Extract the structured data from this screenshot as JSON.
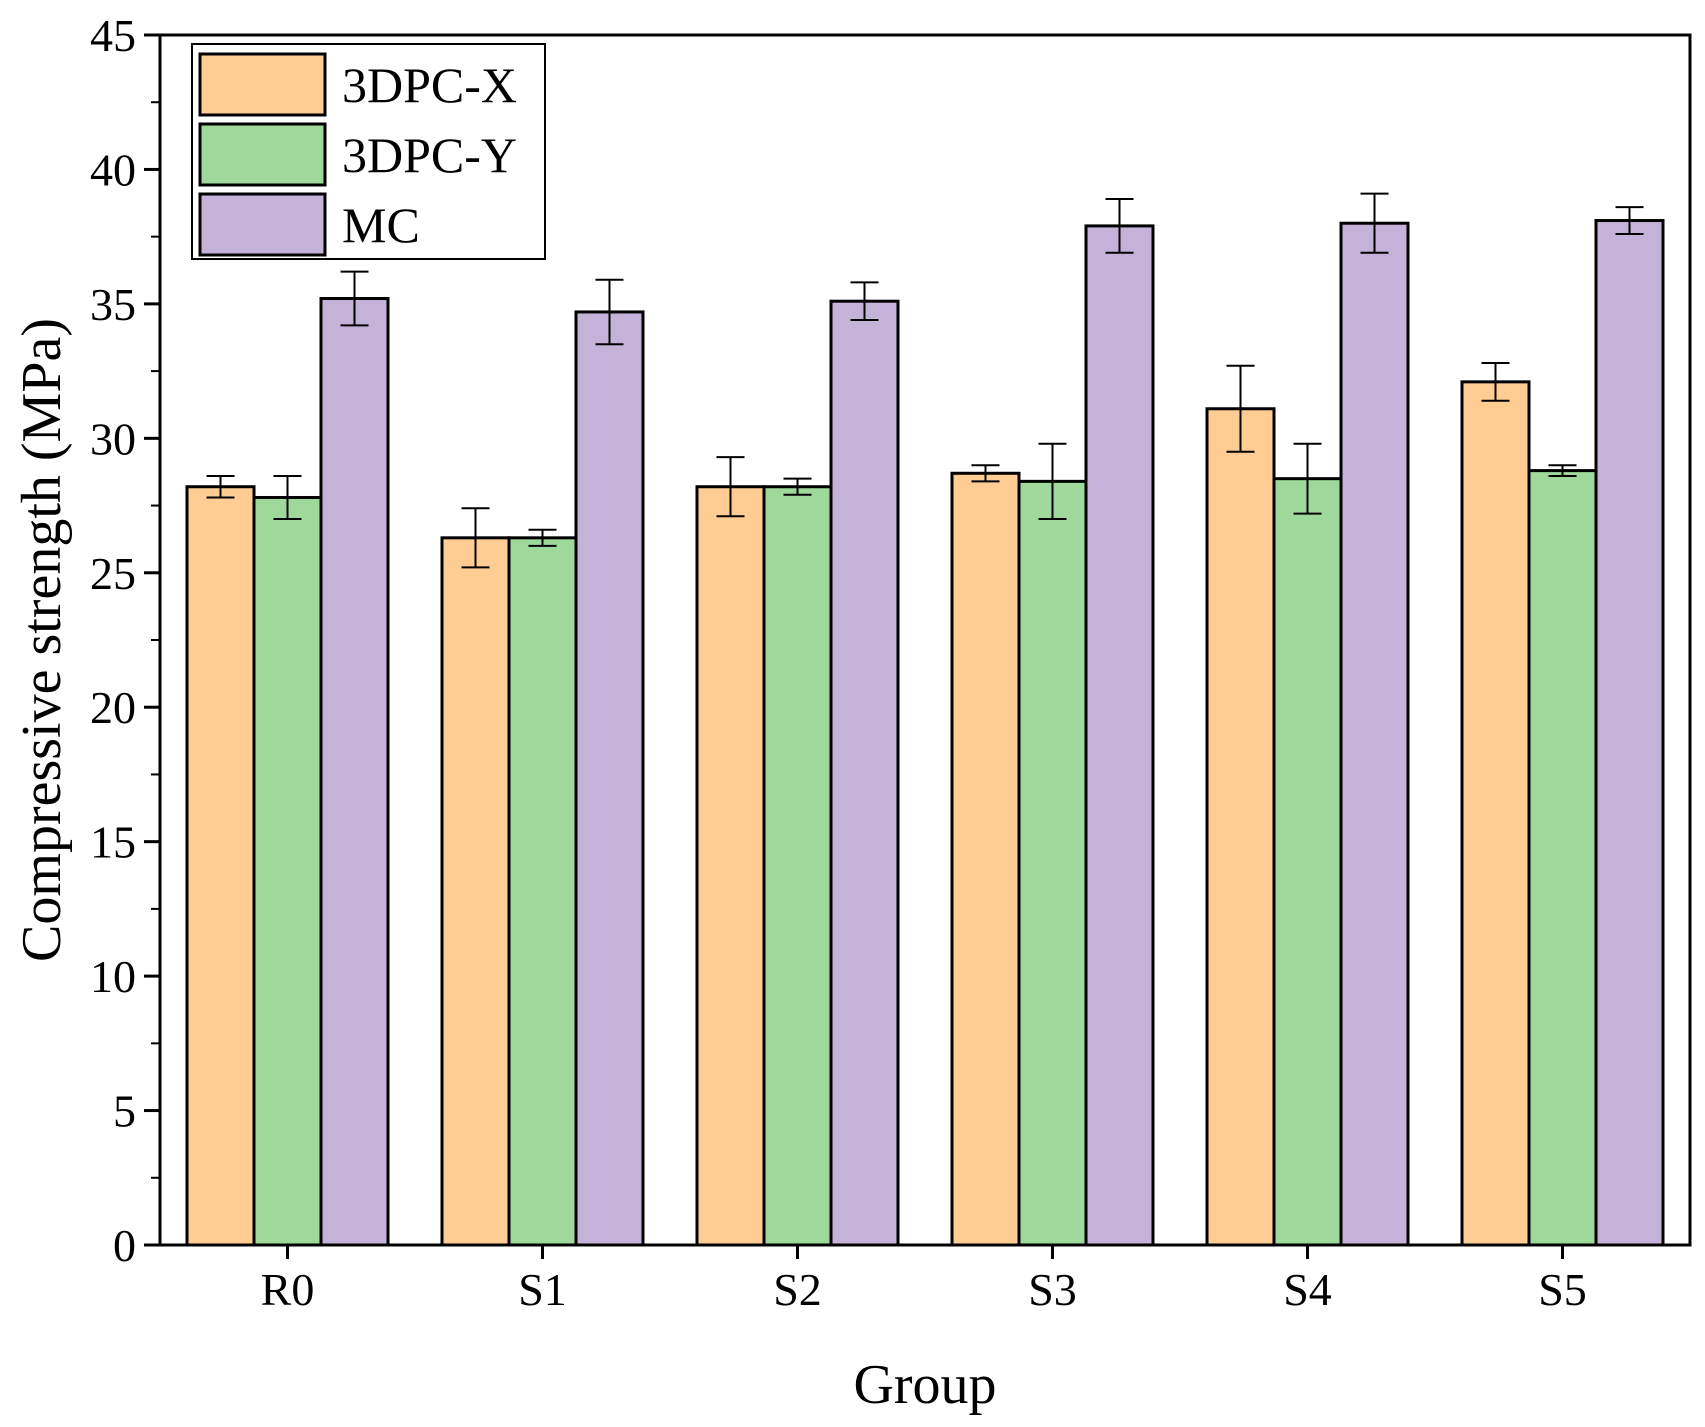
{
  "chart_data": {
    "type": "bar",
    "title": "",
    "xlabel": "Group",
    "ylabel": "Compressive strength (MPa)",
    "ylim": [
      0,
      45
    ],
    "yticks": [
      "0",
      "5",
      "10",
      "15",
      "20",
      "25",
      "30",
      "35",
      "40",
      "45"
    ],
    "categories": [
      "R0",
      "S1",
      "S2",
      "S3",
      "S4",
      "S5"
    ],
    "series": [
      {
        "name": "3DPC-X",
        "color": "#FFCD94",
        "values": [
          28.2,
          26.3,
          28.2,
          28.7,
          31.1,
          32.1
        ],
        "errors": [
          0.4,
          1.1,
          1.1,
          0.3,
          1.6,
          0.7
        ]
      },
      {
        "name": "3DPC-Y",
        "color": "#9ED89B",
        "values": [
          27.8,
          26.3,
          28.2,
          28.4,
          28.5,
          28.8
        ],
        "errors": [
          0.8,
          0.3,
          0.3,
          1.4,
          1.3,
          0.2
        ]
      },
      {
        "name": "MC",
        "color": "#C5B2D8",
        "values": [
          35.2,
          34.7,
          35.1,
          37.9,
          38.0,
          38.1
        ],
        "errors": [
          1.0,
          1.2,
          0.7,
          1.0,
          1.1,
          0.5
        ]
      }
    ],
    "legend_position": "top-left",
    "grid": false
  }
}
